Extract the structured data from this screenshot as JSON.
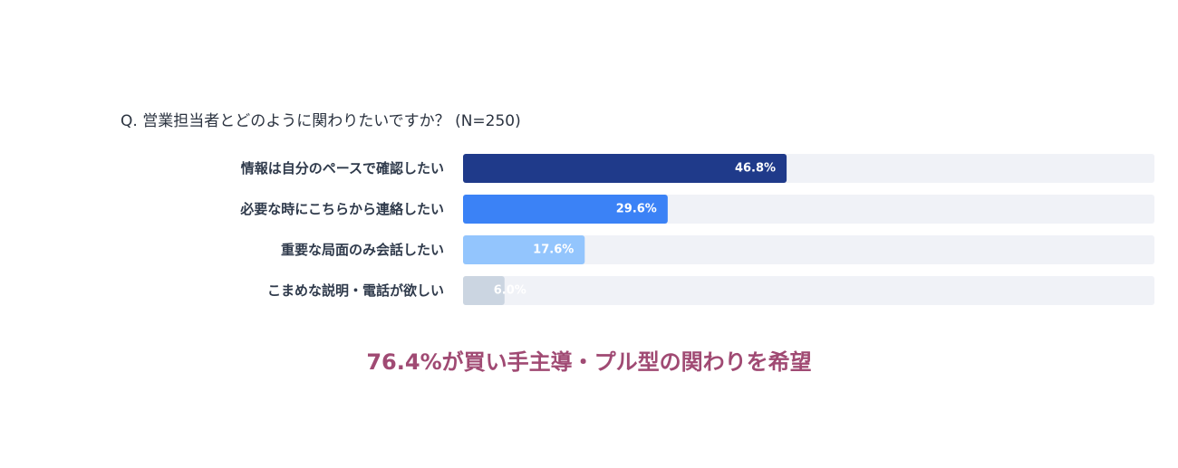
{
  "question": "Q. 営業担当者とどのように関わりたいですか？ (N=250)",
  "summary": "76.4%が買い手主導・プル型の関わりを希望",
  "chart_data": {
    "type": "bar",
    "orientation": "horizontal",
    "categories": [
      "情報は自分のペースで確認したい",
      "必要な時にこちらから連絡したい",
      "重要な局面のみ会話したい",
      "こまめな説明・電話が欲しい"
    ],
    "values": [
      46.8,
      29.6,
      17.6,
      6.0
    ],
    "value_labels": [
      "46.8%",
      "29.6%",
      "17.6%",
      "6.0%"
    ],
    "xlim": [
      0,
      100
    ],
    "unit": "%",
    "bar_colors": [
      "#1f3a8a",
      "#3b82f6",
      "#93c5fd",
      "#cbd5e1"
    ],
    "track_color": "#f0f2f7",
    "grid": false,
    "legend": "none"
  }
}
